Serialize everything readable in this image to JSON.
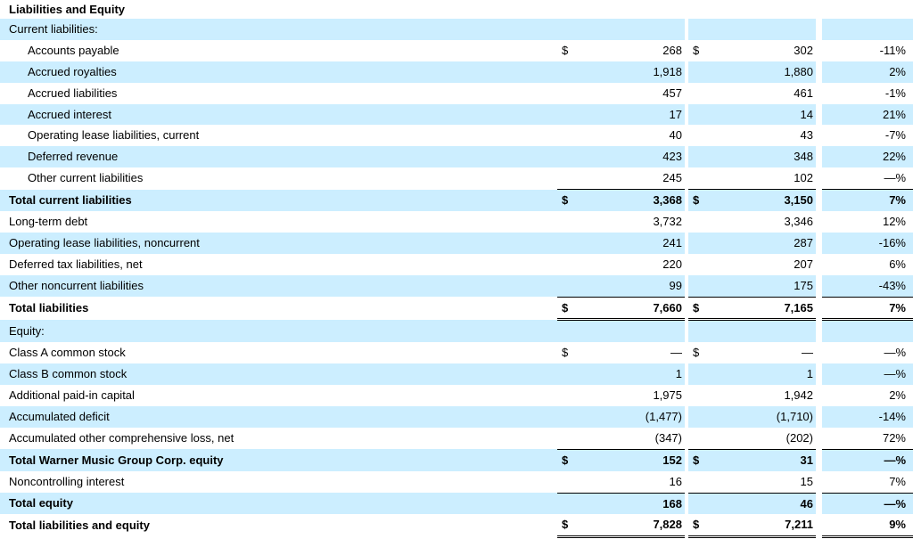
{
  "title": "Liabilities and Equity",
  "rows": [
    {
      "label": "Current liabilities:",
      "d1": "",
      "v1": "",
      "d2": "",
      "v2": "",
      "pct": ""
    },
    {
      "label": "Accounts payable",
      "d1": "$",
      "v1": "268",
      "d2": "$",
      "v2": "302",
      "pct": "-11%"
    },
    {
      "label": "Accrued royalties",
      "d1": "",
      "v1": "1,918",
      "d2": "",
      "v2": "1,880",
      "pct": "2%"
    },
    {
      "label": "Accrued liabilities",
      "d1": "",
      "v1": "457",
      "d2": "",
      "v2": "461",
      "pct": "-1%"
    },
    {
      "label": "Accrued interest",
      "d1": "",
      "v1": "17",
      "d2": "",
      "v2": "14",
      "pct": "21%"
    },
    {
      "label": "Operating lease liabilities, current",
      "d1": "",
      "v1": "40",
      "d2": "",
      "v2": "43",
      "pct": "-7%"
    },
    {
      "label": "Deferred revenue",
      "d1": "",
      "v1": "423",
      "d2": "",
      "v2": "348",
      "pct": "22%"
    },
    {
      "label": "Other current liabilities",
      "d1": "",
      "v1": "245",
      "d2": "",
      "v2": "102",
      "pct": "—%"
    },
    {
      "label": "Total current liabilities",
      "d1": "$",
      "v1": "3,368",
      "d2": "$",
      "v2": "3,150",
      "pct": "7%"
    },
    {
      "label": "Long-term debt",
      "d1": "",
      "v1": "3,732",
      "d2": "",
      "v2": "3,346",
      "pct": "12%"
    },
    {
      "label": "Operating lease liabilities, noncurrent",
      "d1": "",
      "v1": "241",
      "d2": "",
      "v2": "287",
      "pct": "-16%"
    },
    {
      "label": "Deferred tax liabilities, net",
      "d1": "",
      "v1": "220",
      "d2": "",
      "v2": "207",
      "pct": "6%"
    },
    {
      "label": "Other noncurrent liabilities",
      "d1": "",
      "v1": "99",
      "d2": "",
      "v2": "175",
      "pct": "-43%"
    },
    {
      "label": "Total liabilities",
      "d1": "$",
      "v1": "7,660",
      "d2": "$",
      "v2": "7,165",
      "pct": "7%"
    },
    {
      "label": "Equity:",
      "d1": "",
      "v1": "",
      "d2": "",
      "v2": "",
      "pct": ""
    },
    {
      "label": "Class A common stock",
      "d1": "$",
      "v1": "—",
      "d2": "$",
      "v2": "—",
      "pct": "—%"
    },
    {
      "label": "Class B common stock",
      "d1": "",
      "v1": "1",
      "d2": "",
      "v2": "1",
      "pct": "—%"
    },
    {
      "label": "Additional paid-in capital",
      "d1": "",
      "v1": "1,975",
      "d2": "",
      "v2": "1,942",
      "pct": "2%"
    },
    {
      "label": "Accumulated deficit",
      "d1": "",
      "v1": "(1,477)",
      "d2": "",
      "v2": "(1,710)",
      "pct": "-14%"
    },
    {
      "label": "Accumulated other comprehensive loss, net",
      "d1": "",
      "v1": "(347)",
      "d2": "",
      "v2": "(202)",
      "pct": "72%"
    },
    {
      "label": "Total Warner Music Group Corp. equity",
      "d1": "$",
      "v1": "152",
      "d2": "$",
      "v2": "31",
      "pct": "—%"
    },
    {
      "label": "Noncontrolling interest",
      "d1": "",
      "v1": "16",
      "d2": "",
      "v2": "15",
      "pct": "7%"
    },
    {
      "label": "Total equity",
      "d1": "",
      "v1": "168",
      "d2": "",
      "v2": "46",
      "pct": "—%"
    },
    {
      "label": "Total liabilities and equity",
      "d1": "$",
      "v1": "7,828",
      "d2": "$",
      "v2": "7,211",
      "pct": "9%"
    }
  ]
}
